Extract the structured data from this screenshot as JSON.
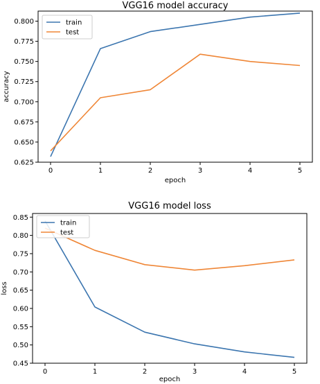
{
  "chart_data": [
    {
      "type": "line",
      "title": "VGG16 model accuracy",
      "xlabel": "epoch",
      "ylabel": "accuracy",
      "x": [
        0,
        1,
        2,
        3,
        4,
        5
      ],
      "xlim": [
        -0.25,
        5.25
      ],
      "ylim": [
        0.625,
        0.8125
      ],
      "xticks": [
        "0",
        "1",
        "2",
        "3",
        "4",
        "5"
      ],
      "yticks": [
        "0.625",
        "0.650",
        "0.675",
        "0.700",
        "0.725",
        "0.750",
        "0.775",
        "0.800"
      ],
      "ytick_values": [
        0.625,
        0.65,
        0.675,
        0.7,
        0.725,
        0.75,
        0.775,
        0.8
      ],
      "legend_position": "upper-left",
      "grid": false,
      "series": [
        {
          "name": "train",
          "color": "#3b75af",
          "values": [
            0.632,
            0.766,
            0.787,
            0.796,
            0.805,
            0.81
          ]
        },
        {
          "name": "test",
          "color": "#ef8636",
          "values": [
            0.639,
            0.705,
            0.715,
            0.759,
            0.75,
            0.745
          ]
        }
      ]
    },
    {
      "type": "line",
      "title": "VGG16 model loss",
      "xlabel": "epoch",
      "ylabel": "loss",
      "x": [
        0,
        1,
        2,
        3,
        4,
        5
      ],
      "xlim": [
        -0.25,
        5.25
      ],
      "ylim": [
        0.45,
        0.86
      ],
      "xticks": [
        "0",
        "1",
        "2",
        "3",
        "4",
        "5"
      ],
      "yticks": [
        "0.45",
        "0.50",
        "0.55",
        "0.60",
        "0.65",
        "0.70",
        "0.75",
        "0.80",
        "0.85"
      ],
      "ytick_values": [
        0.45,
        0.5,
        0.55,
        0.6,
        0.65,
        0.7,
        0.75,
        0.8,
        0.85
      ],
      "legend_position": "upper-left",
      "grid": false,
      "series": [
        {
          "name": "train",
          "color": "#3b75af",
          "values": [
            0.84,
            0.604,
            0.535,
            0.503,
            0.481,
            0.466
          ]
        },
        {
          "name": "test",
          "color": "#ef8636",
          "values": [
            0.82,
            0.759,
            0.72,
            0.705,
            0.717,
            0.733
          ]
        }
      ]
    }
  ]
}
